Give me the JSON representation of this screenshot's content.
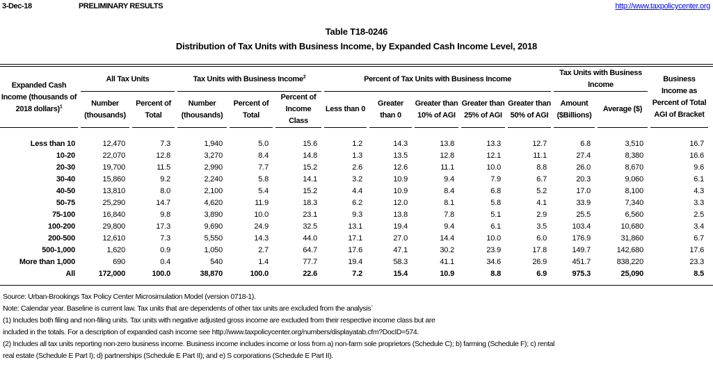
{
  "header": {
    "date": "3-Dec-18",
    "status": "PRELIMINARY RESULTS",
    "url": "http://www.taxpolicycenter.org"
  },
  "title": {
    "table_id": "Table T18-0246",
    "subtitle": "Distribution of Tax Units with Business Income, by Expanded Cash Income Level, 2018"
  },
  "columns": {
    "row_label": "Expanded Cash Income (thousands of 2018 dollars)",
    "row_label_sup": "1",
    "groups": {
      "all_units": "All Tax Units",
      "business_units": "Tax Units with Business Income",
      "business_units_sup": "2",
      "percent_units": "Percent of Tax Units with Business Income",
      "income": "Tax Units with Business Income",
      "pct_agi": "Business Income as Percent of Total AGI of Bracket"
    },
    "sub": [
      "Number (thousands)",
      "Percent of Total",
      "Number (thousands)",
      "Percent of Total",
      "Percent of Income Class",
      "Less than 0",
      "Greater than 0",
      "Greater than 10% of AGI",
      "Greater than 25% of AGI",
      "Greater than 50% of AGI",
      "Amount ($Billions)",
      "Average ($)"
    ]
  },
  "rows": [
    [
      "Less than 10",
      "12,470",
      "7.3",
      "1,940",
      "5.0",
      "15.6",
      "1.2",
      "14.3",
      "13.8",
      "13.3",
      "12.7",
      "6.8",
      "3,510",
      "16.7"
    ],
    [
      "10-20",
      "22,070",
      "12.8",
      "3,270",
      "8.4",
      "14.8",
      "1.3",
      "13.5",
      "12.8",
      "12.1",
      "11.1",
      "27.4",
      "8,380",
      "16.6"
    ],
    [
      "20-30",
      "19,700",
      "11.5",
      "2,990",
      "7.7",
      "15.2",
      "2.6",
      "12.6",
      "11.1",
      "10.0",
      "8.8",
      "26.0",
      "8,670",
      "9.6"
    ],
    [
      "30-40",
      "15,860",
      "9.2",
      "2,240",
      "5.8",
      "14.1",
      "3.2",
      "10.9",
      "9.4",
      "7.9",
      "6.7",
      "20.3",
      "9,060",
      "6.1"
    ],
    [
      "40-50",
      "13,810",
      "8.0",
      "2,100",
      "5.4",
      "15.2",
      "4.4",
      "10.9",
      "8.4",
      "6.8",
      "5.2",
      "17.0",
      "8,100",
      "4.3"
    ],
    [
      "50-75",
      "25,290",
      "14.7",
      "4,620",
      "11.9",
      "18.3",
      "6.2",
      "12.0",
      "8.1",
      "5.8",
      "4.1",
      "33.9",
      "7,340",
      "3.3"
    ],
    [
      "75-100",
      "16,840",
      "9.8",
      "3,890",
      "10.0",
      "23.1",
      "9.3",
      "13.8",
      "7.8",
      "5.1",
      "2.9",
      "25.5",
      "6,560",
      "2.5"
    ],
    [
      "100-200",
      "29,800",
      "17.3",
      "9,690",
      "24.9",
      "32.5",
      "13.1",
      "19.4",
      "9.4",
      "6.1",
      "3.5",
      "103.4",
      "10,680",
      "3.4"
    ],
    [
      "200-500",
      "12,610",
      "7.3",
      "5,550",
      "14.3",
      "44.0",
      "17.1",
      "27.0",
      "14.4",
      "10.0",
      "6.0",
      "176.9",
      "31,860",
      "6.7"
    ],
    [
      "500-1,000",
      "1,620",
      "0.9",
      "1,050",
      "2.7",
      "64.7",
      "17.6",
      "47.1",
      "30.2",
      "23.9",
      "17.8",
      "149.7",
      "142,680",
      "17.6"
    ],
    [
      "More than 1,000",
      "690",
      "0.4",
      "540",
      "1.4",
      "77.7",
      "19.4",
      "58.3",
      "41.1",
      "34.6",
      "26.9",
      "451.7",
      "838,220",
      "23.3"
    ],
    [
      "All",
      "172,000",
      "100.0",
      "38,870",
      "100.0",
      "22.6",
      "7.2",
      "15.4",
      "10.9",
      "8.8",
      "6.9",
      "975.3",
      "25,090",
      "8.5"
    ]
  ],
  "notes": [
    "Source: Urban-Brookings Tax Policy Center Microsimulation Model (version 0718-1).",
    "Note: Calendar year. Baseline is current law. Tax units that are dependents of other tax units are excluded from the analysis`",
    "(1) Includes both filing and non-filing units. Tax units with negative adjusted gross income are excluded from their respective income class but are",
    "included in the totals. For a description of expanded cash income see http://www.taxpolicycenter.org/numbers/displayatab.cfm?DocID=574.",
    "(2) Includes all tax units reporting non-zero business income. Business income includes income or loss from a) non-farm sole proprietors (Schedule C); b) farming (Schedule F); c) rental",
    "real estate (Schedule E Part I); d) partnerships (Schedule E Part II); and e) S corporations (Schedule E Part II)."
  ]
}
